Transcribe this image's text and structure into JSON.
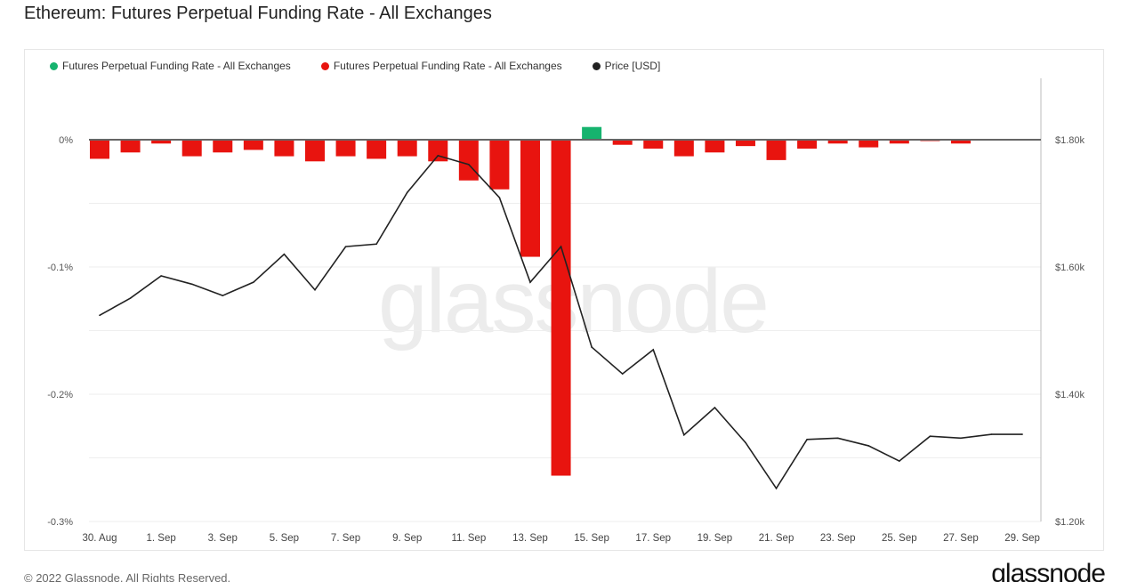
{
  "title": "Ethereum: Futures Perpetual Funding Rate - All Exchanges",
  "footer": "© 2022 Glassnode. All Rights Reserved.",
  "logo": "glassnode",
  "watermark": "glassnode",
  "chart_data": {
    "type": "bar",
    "title": "Ethereum: Futures Perpetual Funding Rate - All Exchanges",
    "categories": [
      "30 Aug",
      "31 Aug",
      "1 Sep",
      "2 Sep",
      "3 Sep",
      "4 Sep",
      "5 Sep",
      "6 Sep",
      "7 Sep",
      "8 Sep",
      "9 Sep",
      "10 Sep",
      "11 Sep",
      "12 Sep",
      "13 Sep",
      "14 Sep",
      "15 Sep",
      "16 Sep",
      "17 Sep",
      "18 Sep",
      "19 Sep",
      "20 Sep",
      "21 Sep",
      "22 Sep",
      "23 Sep",
      "24 Sep",
      "25 Sep",
      "26 Sep",
      "27 Sep",
      "28 Sep",
      "29 Sep"
    ],
    "x_tick_labels": [
      "30. Aug",
      "1. Sep",
      "3. Sep",
      "5. Sep",
      "7. Sep",
      "9. Sep",
      "11. Sep",
      "13. Sep",
      "15. Sep",
      "17. Sep",
      "19. Sep",
      "21. Sep",
      "23. Sep",
      "25. Sep",
      "27. Sep",
      "29. Sep"
    ],
    "series": [
      {
        "name": "Futures Perpetual Funding Rate - All Exchanges",
        "kind": "bar",
        "axis": "left",
        "unit": "%",
        "values": [
          -0.015,
          -0.01,
          -0.003,
          -0.013,
          -0.01,
          -0.008,
          -0.013,
          -0.017,
          -0.013,
          -0.015,
          -0.013,
          -0.017,
          -0.032,
          -0.039,
          -0.092,
          -0.264,
          0.01,
          -0.004,
          -0.007,
          -0.013,
          -0.01,
          -0.005,
          -0.016,
          -0.007,
          -0.003,
          -0.006,
          -0.003,
          -0.001,
          -0.003,
          null,
          null
        ]
      },
      {
        "name": "Price [USD]",
        "kind": "line",
        "axis": "right",
        "values": [
          1524,
          1551,
          1586,
          1573,
          1555,
          1576,
          1620,
          1564,
          1632,
          1636,
          1717,
          1775,
          1761,
          1709,
          1576,
          1632,
          1474,
          1432,
          1470,
          1336,
          1379,
          1324,
          1252,
          1329,
          1331,
          1319,
          1295,
          1334,
          1331,
          1337,
          1337
        ]
      }
    ],
    "legend": [
      {
        "label": "Futures Perpetual Funding Rate - All Exchanges",
        "color": "#16b36e"
      },
      {
        "label": "Futures Perpetual Funding Rate - All Exchanges",
        "color": "#e8140f"
      },
      {
        "label": "Price [USD]",
        "color": "#222222"
      }
    ],
    "legend_placement": "top-left",
    "colors": {
      "positive": "#16b36e",
      "negative": "#e8140f",
      "price": "#222222"
    },
    "y_left": {
      "range": [
        -0.3,
        0.05
      ],
      "ticks": [
        0,
        -0.1,
        -0.2,
        -0.3
      ],
      "tick_labels": [
        "0%",
        "-0.1%",
        "-0.2%",
        "-0.3%"
      ]
    },
    "y_right": {
      "range": [
        1200,
        1900
      ],
      "ticks": [
        1800,
        1600,
        1400,
        1200
      ],
      "tick_labels": [
        "$1.80k",
        "$1.60k",
        "$1.40k",
        "$1.20k"
      ]
    },
    "grid": true
  }
}
